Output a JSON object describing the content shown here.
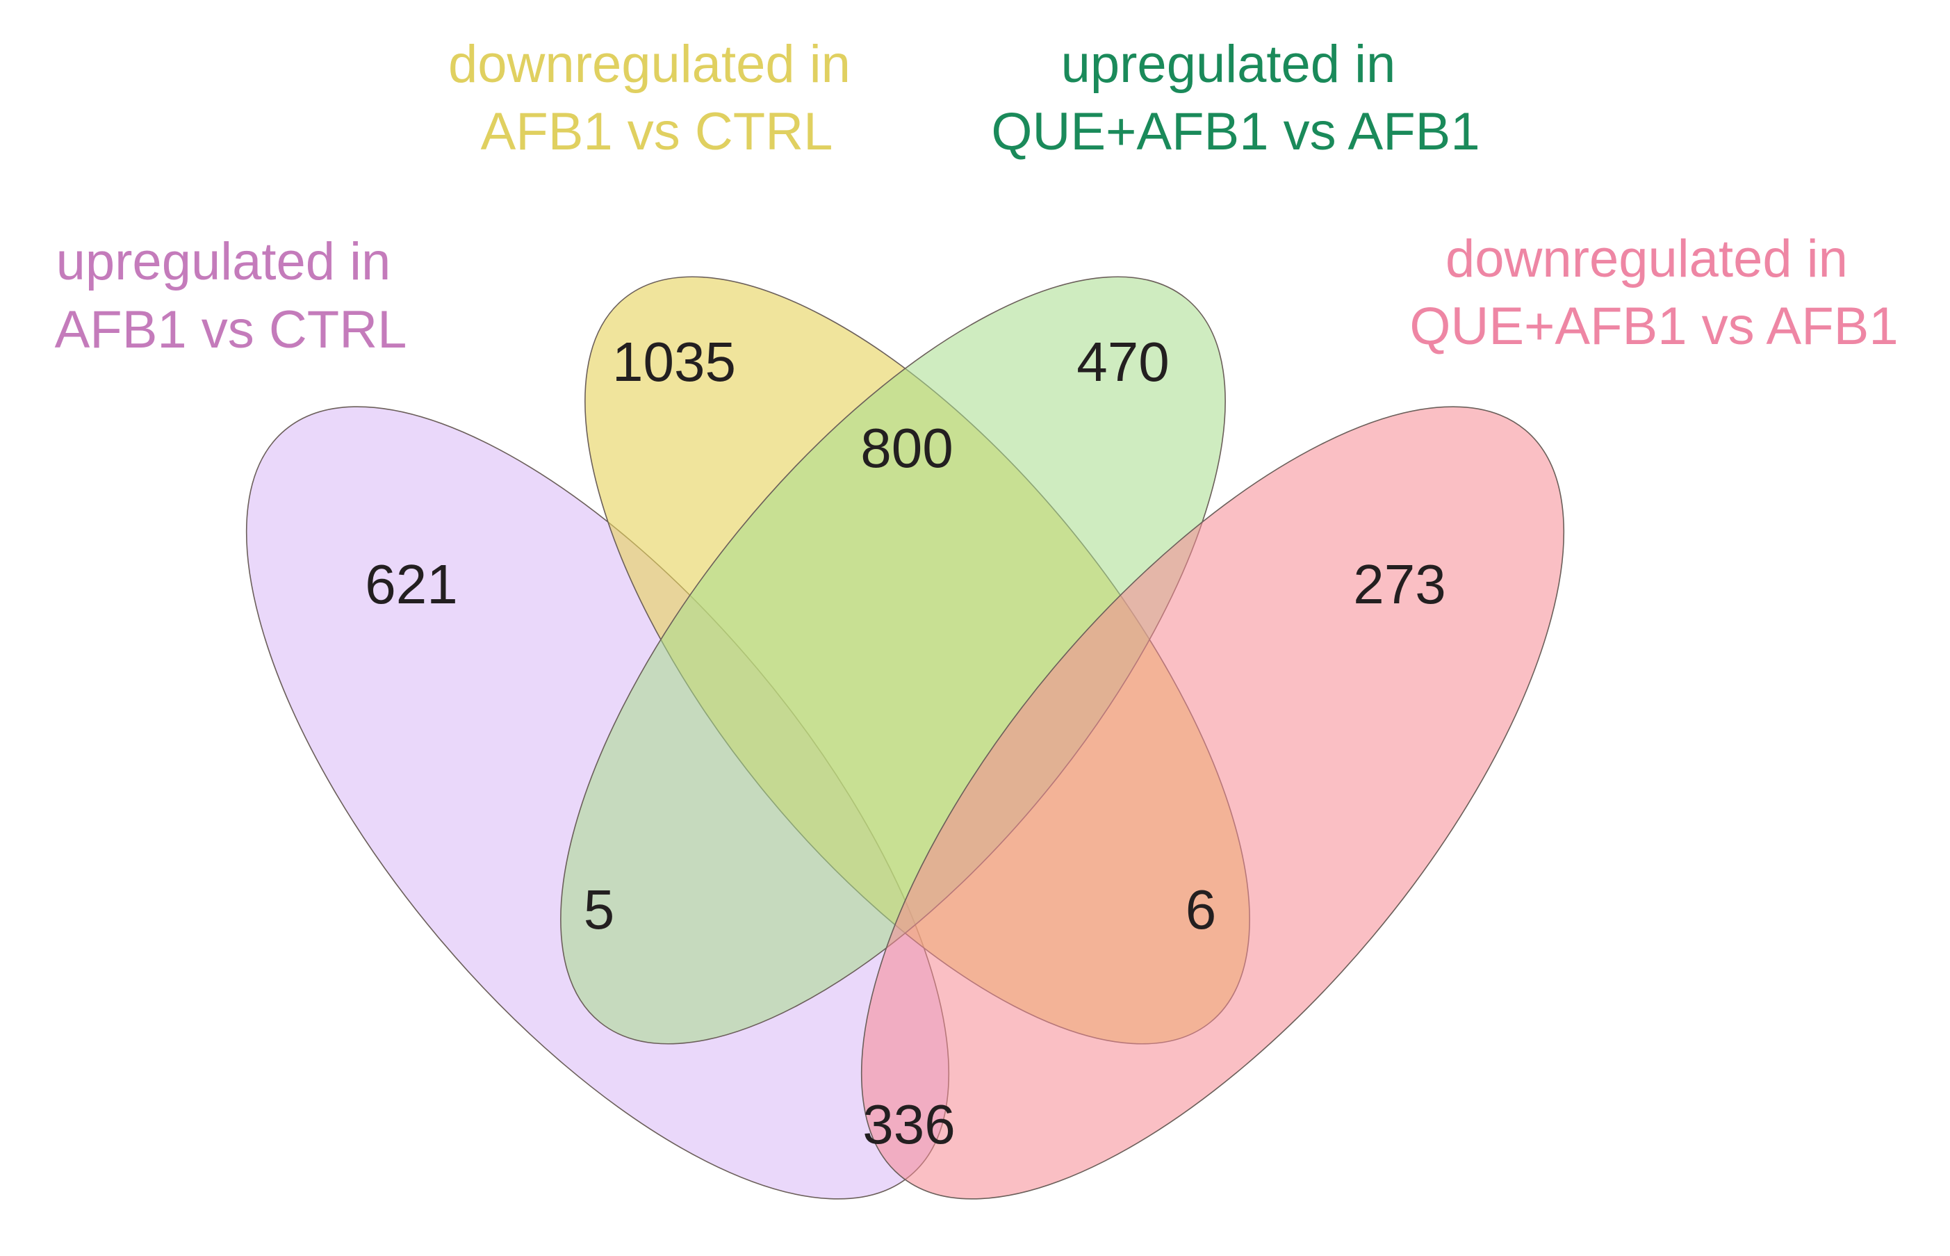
{
  "sets": [
    {
      "id": "A",
      "label_lines": [
        "upregulated in",
        "AFB1 vs CTRL"
      ],
      "fill": "#d9b8f5",
      "label_color": "#c47bbb"
    },
    {
      "id": "B",
      "label_lines": [
        "downregulated in",
        "AFB1 vs CTRL"
      ],
      "fill": "#e6d25a",
      "label_color": "#e0d060"
    },
    {
      "id": "C",
      "label_lines": [
        "upregulated in",
        "QUE+AFB1 vs AFB1"
      ],
      "fill": "#a8dc8c",
      "label_color": "#1a8a5a"
    },
    {
      "id": "D",
      "label_lines": [
        "downregulated in",
        "QUE+AFB1 vs AFB1"
      ],
      "fill": "#f58a94",
      "label_color": "#ee86a4"
    }
  ],
  "regions": [
    {
      "sets": [
        "A"
      ],
      "count": "621"
    },
    {
      "sets": [
        "B"
      ],
      "count": "1035"
    },
    {
      "sets": [
        "C"
      ],
      "count": "470"
    },
    {
      "sets": [
        "D"
      ],
      "count": "273"
    },
    {
      "sets": [
        "B",
        "C"
      ],
      "count": "800"
    },
    {
      "sets": [
        "A",
        "C"
      ],
      "count": "5"
    },
    {
      "sets": [
        "B",
        "D"
      ],
      "count": "6"
    },
    {
      "sets": [
        "A",
        "D"
      ],
      "count": "336"
    }
  ]
}
